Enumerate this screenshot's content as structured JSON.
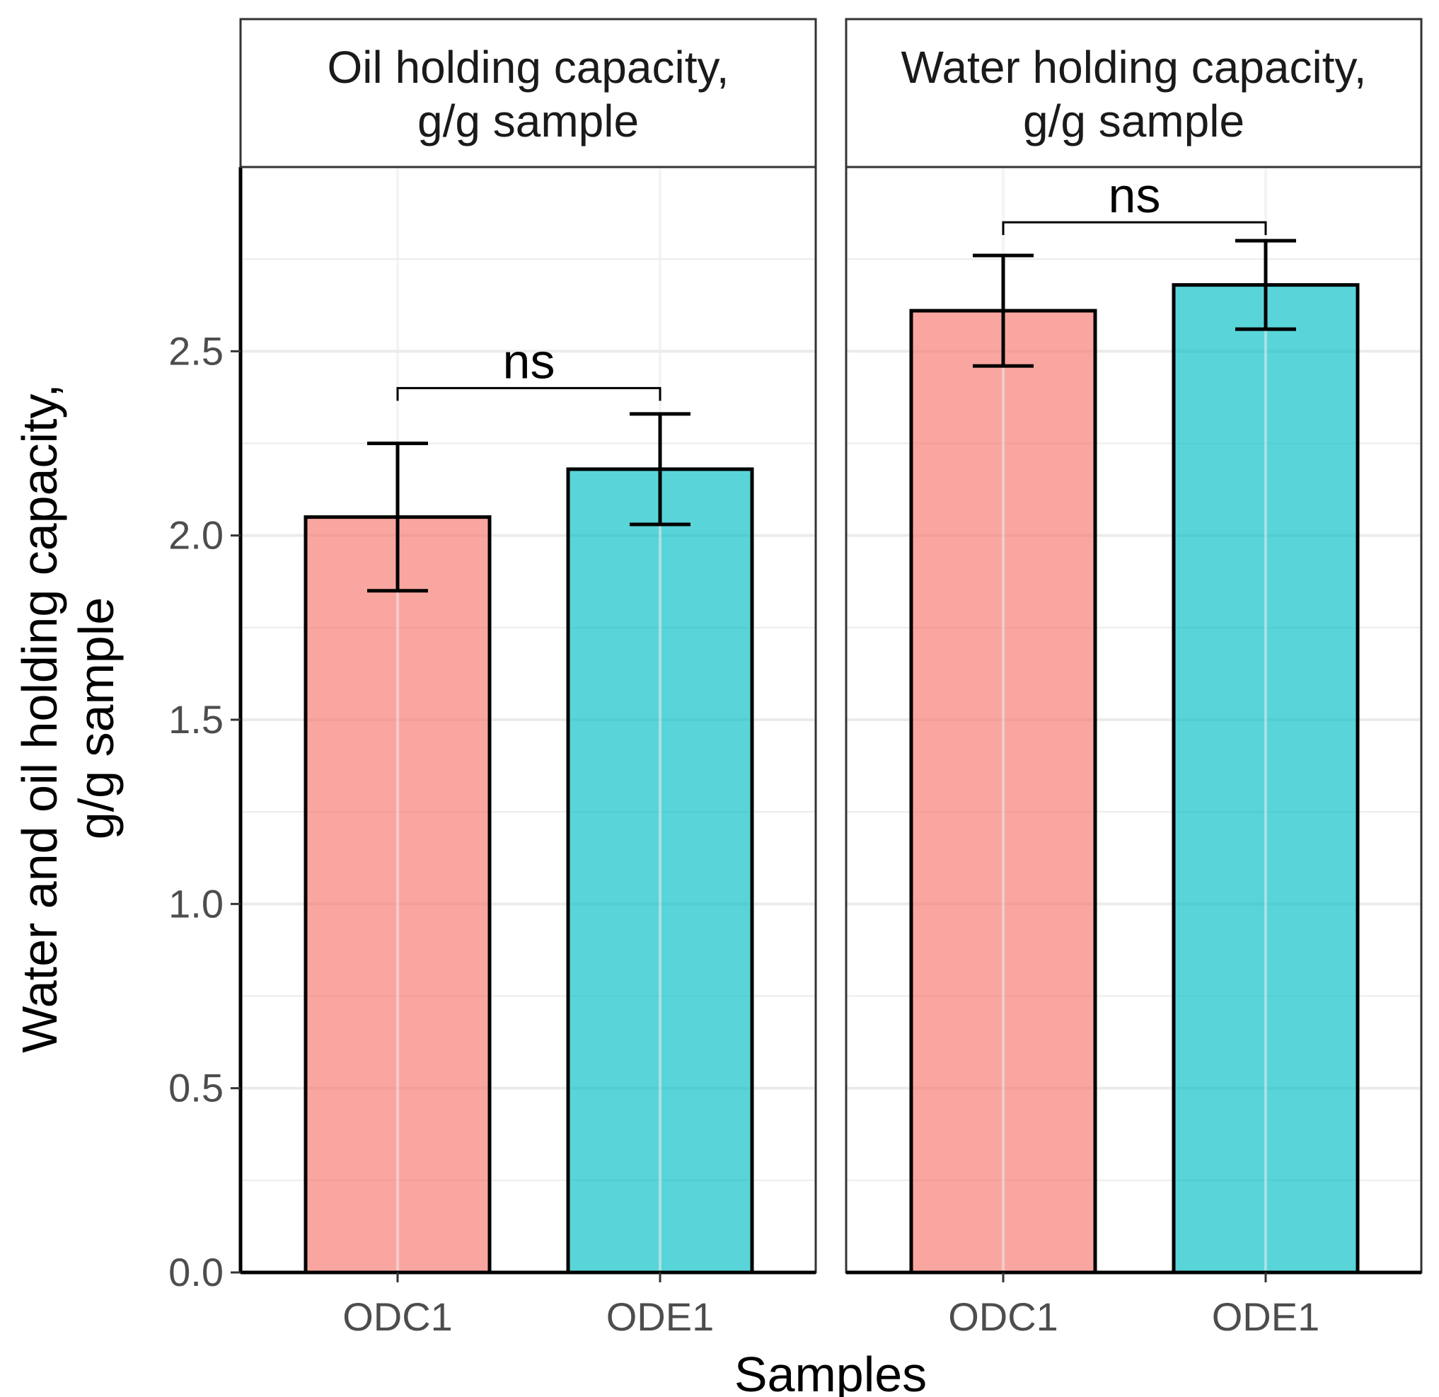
{
  "chart_data": {
    "type": "bar",
    "xlabel": "Samples",
    "ylabel_lines": [
      "Water and oil holding capacity,",
      "g/g sample"
    ],
    "ylim": [
      0,
      3.0
    ],
    "yticks": [
      "0.0",
      "0.5",
      "1.0",
      "1.5",
      "2.0",
      "2.5"
    ],
    "grid": true,
    "colors": {
      "ODC1": "#F8766D",
      "ODE1": "#00BFC4",
      "bar_opacity": 0.65
    },
    "facets": [
      {
        "title_lines": [
          "Oil holding capacity,",
          "g/g sample"
        ],
        "categories": [
          "ODC1",
          "ODE1"
        ],
        "values": [
          2.05,
          2.18
        ],
        "error_low": [
          1.85,
          2.03
        ],
        "error_high": [
          2.25,
          2.33
        ],
        "comparison": {
          "label": "ns",
          "y": 2.4
        }
      },
      {
        "title_lines": [
          "Water holding capacity,",
          "g/g sample"
        ],
        "categories": [
          "ODC1",
          "ODE1"
        ],
        "values": [
          2.61,
          2.68
        ],
        "error_low": [
          2.46,
          2.56
        ],
        "error_high": [
          2.76,
          2.8
        ],
        "comparison": {
          "label": "ns",
          "y": 2.85
        }
      }
    ]
  }
}
